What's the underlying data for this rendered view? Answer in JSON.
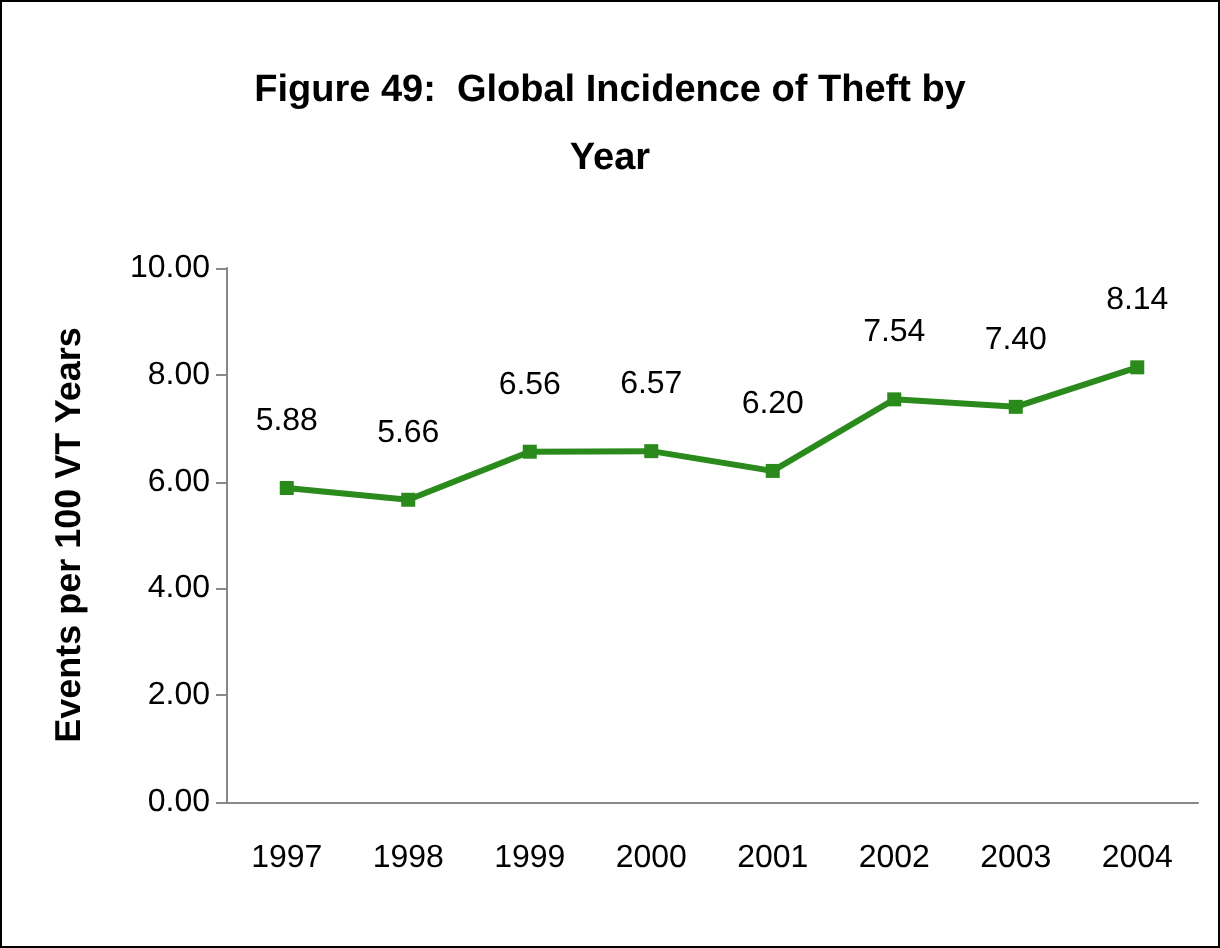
{
  "chart_data": {
    "type": "line",
    "title": "Figure 49:  Global Incidence of Theft by\nYear",
    "ylabel": "Events per 100 VT Years",
    "categories": [
      "1997",
      "1998",
      "1999",
      "2000",
      "2001",
      "2002",
      "2003",
      "2004"
    ],
    "series": [
      {
        "color": "#2a8a1c",
        "values": [
          5.88,
          5.66,
          6.56,
          6.57,
          6.2,
          7.54,
          7.4,
          8.14
        ],
        "value_labels": [
          "5.88",
          "5.66",
          "6.56",
          "6.57",
          "6.20",
          "7.54",
          "7.40",
          "8.14"
        ]
      }
    ],
    "ylim": [
      0,
      10
    ],
    "yticks": [
      {
        "value": 0,
        "label": "0.00"
      },
      {
        "value": 2,
        "label": "2.00"
      },
      {
        "value": 4,
        "label": "4.00"
      },
      {
        "value": 6,
        "label": "6.00"
      },
      {
        "value": 8,
        "label": "8.00"
      },
      {
        "value": 10,
        "label": "10.00"
      }
    ],
    "grid": false,
    "marker": "square",
    "line_style": "solid"
  }
}
